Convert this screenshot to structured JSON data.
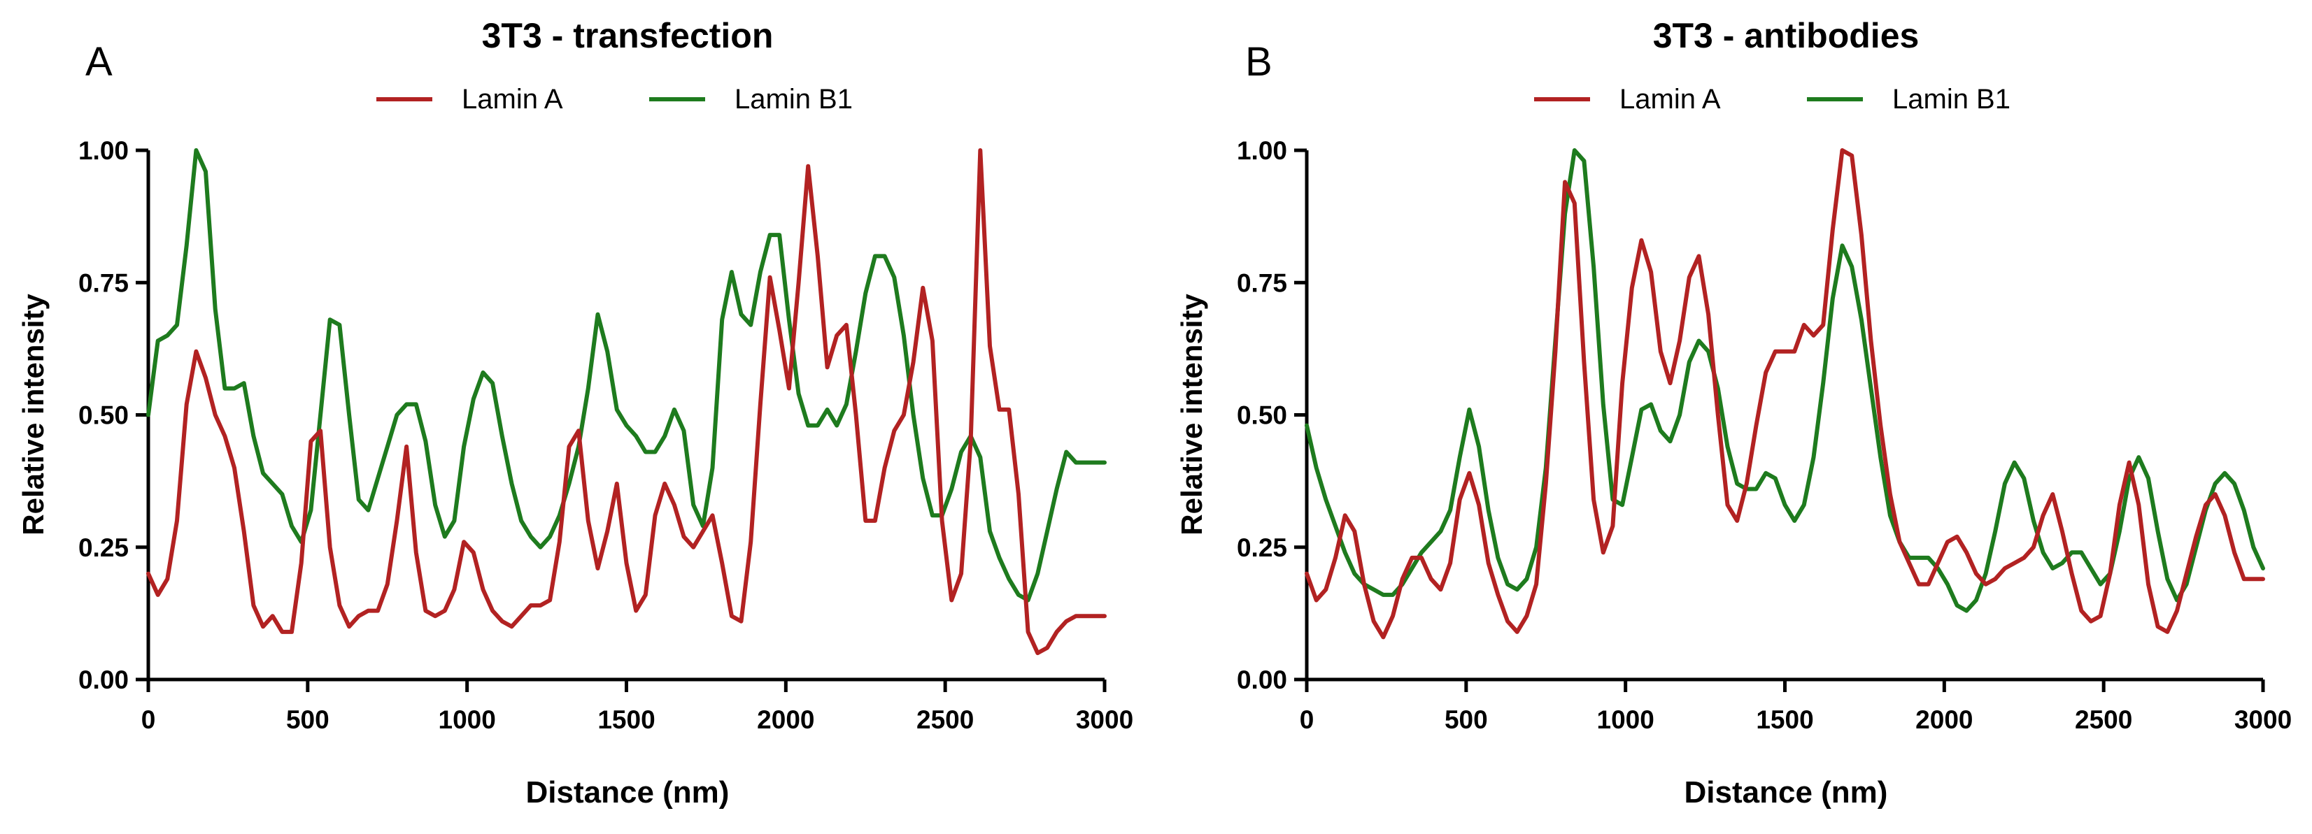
{
  "chart_data": [
    {
      "panel_letter": "A",
      "type": "line",
      "title": "3T3 - transfection",
      "xlabel": "Distance (nm)",
      "ylabel": "Relative intensity",
      "xlim": [
        0,
        3000
      ],
      "ylim": [
        0,
        1
      ],
      "xticks": [
        0,
        500,
        1000,
        1500,
        2000,
        2500,
        3000
      ],
      "yticks": [
        0,
        0.25,
        0.5,
        0.75,
        1.0
      ],
      "ytick_labels": [
        "0.00",
        "0.25",
        "0.50",
        "0.75",
        "1.00"
      ],
      "grid": false,
      "legend_position": "top",
      "series": [
        {
          "name": "Lamin A",
          "color": "#b22222",
          "x": [
            0,
            30,
            60,
            90,
            120,
            150,
            180,
            210,
            240,
            270,
            300,
            330,
            360,
            390,
            420,
            450,
            480,
            510,
            540,
            570,
            600,
            630,
            660,
            690,
            720,
            750,
            780,
            810,
            840,
            870,
            900,
            930,
            960,
            990,
            1020,
            1050,
            1080,
            1110,
            1140,
            1170,
            1200,
            1230,
            1260,
            1290,
            1320,
            1350,
            1380,
            1410,
            1440,
            1470,
            1500,
            1530,
            1560,
            1590,
            1620,
            1650,
            1680,
            1710,
            1740,
            1770,
            1800,
            1830,
            1860,
            1890,
            1920,
            1950,
            1980,
            2010,
            2040,
            2070,
            2100,
            2130,
            2160,
            2190,
            2220,
            2250,
            2280,
            2310,
            2340,
            2370,
            2400,
            2430,
            2460,
            2490,
            2520,
            2550,
            2580,
            2610,
            2640,
            2670,
            2700,
            2730,
            2760,
            2790,
            2820,
            2850,
            2880,
            2910,
            2940,
            2970,
            3000
          ],
          "values": [
            0.2,
            0.16,
            0.19,
            0.3,
            0.52,
            0.62,
            0.57,
            0.5,
            0.46,
            0.4,
            0.28,
            0.14,
            0.1,
            0.12,
            0.09,
            0.09,
            0.22,
            0.45,
            0.47,
            0.25,
            0.14,
            0.1,
            0.12,
            0.13,
            0.13,
            0.18,
            0.3,
            0.44,
            0.24,
            0.13,
            0.12,
            0.13,
            0.17,
            0.26,
            0.24,
            0.17,
            0.13,
            0.11,
            0.1,
            0.12,
            0.14,
            0.14,
            0.15,
            0.26,
            0.44,
            0.47,
            0.3,
            0.21,
            0.28,
            0.37,
            0.22,
            0.13,
            0.16,
            0.31,
            0.37,
            0.33,
            0.27,
            0.25,
            0.28,
            0.31,
            0.22,
            0.12,
            0.11,
            0.26,
            0.52,
            0.76,
            0.66,
            0.55,
            0.75,
            0.97,
            0.8,
            0.59,
            0.65,
            0.67,
            0.5,
            0.3,
            0.3,
            0.4,
            0.47,
            0.5,
            0.6,
            0.74,
            0.64,
            0.3,
            0.15,
            0.2,
            0.45,
            1.0,
            0.63,
            0.51,
            0.51,
            0.35,
            0.09,
            0.05,
            0.06,
            0.09,
            0.11,
            0.12,
            0.12,
            0.12,
            0.12
          ]
        },
        {
          "name": "Lamin B1",
          "color": "#1e7b1e",
          "x": [
            0,
            30,
            60,
            90,
            120,
            150,
            180,
            210,
            240,
            270,
            300,
            330,
            360,
            390,
            420,
            450,
            480,
            510,
            540,
            570,
            600,
            630,
            660,
            690,
            720,
            750,
            780,
            810,
            840,
            870,
            900,
            930,
            960,
            990,
            1020,
            1050,
            1080,
            1110,
            1140,
            1170,
            1200,
            1230,
            1260,
            1290,
            1320,
            1350,
            1380,
            1410,
            1440,
            1470,
            1500,
            1530,
            1560,
            1590,
            1620,
            1650,
            1680,
            1710,
            1740,
            1770,
            1800,
            1830,
            1860,
            1890,
            1920,
            1950,
            1980,
            2010,
            2040,
            2070,
            2100,
            2130,
            2160,
            2190,
            2220,
            2250,
            2280,
            2310,
            2340,
            2370,
            2400,
            2430,
            2460,
            2490,
            2520,
            2550,
            2580,
            2610,
            2640,
            2670,
            2700,
            2730,
            2760,
            2790,
            2820,
            2850,
            2880,
            2910,
            2940,
            2970,
            3000
          ],
          "values": [
            0.5,
            0.64,
            0.65,
            0.67,
            0.82,
            1.0,
            0.96,
            0.7,
            0.55,
            0.55,
            0.56,
            0.46,
            0.39,
            0.37,
            0.35,
            0.29,
            0.26,
            0.32,
            0.5,
            0.68,
            0.67,
            0.5,
            0.34,
            0.32,
            0.38,
            0.44,
            0.5,
            0.52,
            0.52,
            0.45,
            0.33,
            0.27,
            0.3,
            0.44,
            0.53,
            0.58,
            0.56,
            0.46,
            0.37,
            0.3,
            0.27,
            0.25,
            0.27,
            0.31,
            0.37,
            0.44,
            0.55,
            0.69,
            0.62,
            0.51,
            0.48,
            0.46,
            0.43,
            0.43,
            0.46,
            0.51,
            0.47,
            0.33,
            0.29,
            0.4,
            0.68,
            0.77,
            0.69,
            0.67,
            0.77,
            0.84,
            0.84,
            0.68,
            0.54,
            0.48,
            0.48,
            0.51,
            0.48,
            0.52,
            0.62,
            0.73,
            0.8,
            0.8,
            0.76,
            0.65,
            0.5,
            0.38,
            0.31,
            0.31,
            0.36,
            0.43,
            0.46,
            0.42,
            0.28,
            0.23,
            0.19,
            0.16,
            0.15,
            0.2,
            0.28,
            0.36,
            0.43,
            0.41,
            0.41,
            0.41,
            0.41
          ]
        }
      ]
    },
    {
      "panel_letter": "B",
      "type": "line",
      "title": "3T3 -  antibodies",
      "xlabel": "Distance (nm)",
      "ylabel": "Relative intensity",
      "xlim": [
        0,
        3000
      ],
      "ylim": [
        0,
        1
      ],
      "xticks": [
        0,
        500,
        1000,
        1500,
        2000,
        2500,
        3000
      ],
      "yticks": [
        0,
        0.25,
        0.5,
        0.75,
        1.0
      ],
      "ytick_labels": [
        "0.00",
        "0.25",
        "0.50",
        "0.75",
        "1.00"
      ],
      "grid": false,
      "legend_position": "top",
      "series": [
        {
          "name": "Lamin A",
          "color": "#b22222",
          "x": [
            0,
            30,
            60,
            90,
            120,
            150,
            180,
            210,
            240,
            270,
            300,
            330,
            360,
            390,
            420,
            450,
            480,
            510,
            540,
            570,
            600,
            630,
            660,
            690,
            720,
            750,
            780,
            810,
            840,
            870,
            900,
            930,
            960,
            990,
            1020,
            1050,
            1080,
            1110,
            1140,
            1170,
            1200,
            1230,
            1260,
            1290,
            1320,
            1350,
            1380,
            1410,
            1440,
            1470,
            1500,
            1530,
            1560,
            1590,
            1620,
            1650,
            1680,
            1710,
            1740,
            1770,
            1800,
            1830,
            1860,
            1890,
            1920,
            1950,
            1980,
            2010,
            2040,
            2070,
            2100,
            2130,
            2160,
            2190,
            2220,
            2250,
            2280,
            2310,
            2340,
            2370,
            2400,
            2430,
            2460,
            2490,
            2520,
            2550,
            2580,
            2610,
            2640,
            2670,
            2700,
            2730,
            2760,
            2790,
            2820,
            2850,
            2880,
            2910,
            2940,
            2970,
            3000
          ],
          "values": [
            0.2,
            0.15,
            0.17,
            0.23,
            0.31,
            0.28,
            0.18,
            0.11,
            0.08,
            0.12,
            0.19,
            0.23,
            0.23,
            0.19,
            0.17,
            0.22,
            0.34,
            0.39,
            0.33,
            0.22,
            0.16,
            0.11,
            0.09,
            0.12,
            0.18,
            0.37,
            0.62,
            0.94,
            0.9,
            0.6,
            0.34,
            0.24,
            0.29,
            0.56,
            0.74,
            0.83,
            0.77,
            0.62,
            0.56,
            0.64,
            0.76,
            0.8,
            0.69,
            0.5,
            0.33,
            0.3,
            0.37,
            0.48,
            0.58,
            0.62,
            0.62,
            0.62,
            0.67,
            0.65,
            0.67,
            0.85,
            1.0,
            0.99,
            0.84,
            0.64,
            0.48,
            0.35,
            0.26,
            0.22,
            0.18,
            0.18,
            0.22,
            0.26,
            0.27,
            0.24,
            0.2,
            0.18,
            0.19,
            0.21,
            0.22,
            0.23,
            0.25,
            0.31,
            0.35,
            0.28,
            0.2,
            0.13,
            0.11,
            0.12,
            0.2,
            0.33,
            0.41,
            0.33,
            0.18,
            0.1,
            0.09,
            0.13,
            0.2,
            0.27,
            0.33,
            0.35,
            0.31,
            0.24,
            0.19,
            0.19,
            0.19
          ]
        },
        {
          "name": "Lamin B1",
          "color": "#1e7b1e",
          "x": [
            0,
            30,
            60,
            90,
            120,
            150,
            180,
            210,
            240,
            270,
            300,
            330,
            360,
            390,
            420,
            450,
            480,
            510,
            540,
            570,
            600,
            630,
            660,
            690,
            720,
            750,
            780,
            810,
            840,
            870,
            900,
            930,
            960,
            990,
            1020,
            1050,
            1080,
            1110,
            1140,
            1170,
            1200,
            1230,
            1260,
            1290,
            1320,
            1350,
            1380,
            1410,
            1440,
            1470,
            1500,
            1530,
            1560,
            1590,
            1620,
            1650,
            1680,
            1710,
            1740,
            1770,
            1800,
            1830,
            1860,
            1890,
            1920,
            1950,
            1980,
            2010,
            2040,
            2070,
            2100,
            2130,
            2160,
            2190,
            2220,
            2250,
            2280,
            2310,
            2340,
            2370,
            2400,
            2430,
            2460,
            2490,
            2520,
            2550,
            2580,
            2610,
            2640,
            2670,
            2700,
            2730,
            2760,
            2790,
            2820,
            2850,
            2880,
            2910,
            2940,
            2970,
            3000
          ],
          "values": [
            0.48,
            0.4,
            0.34,
            0.29,
            0.24,
            0.2,
            0.18,
            0.17,
            0.16,
            0.16,
            0.18,
            0.21,
            0.24,
            0.26,
            0.28,
            0.32,
            0.42,
            0.51,
            0.44,
            0.32,
            0.23,
            0.18,
            0.17,
            0.19,
            0.25,
            0.4,
            0.64,
            0.88,
            1.0,
            0.98,
            0.78,
            0.52,
            0.34,
            0.33,
            0.42,
            0.51,
            0.52,
            0.47,
            0.45,
            0.5,
            0.6,
            0.64,
            0.62,
            0.55,
            0.44,
            0.37,
            0.36,
            0.36,
            0.39,
            0.38,
            0.33,
            0.3,
            0.33,
            0.42,
            0.56,
            0.72,
            0.82,
            0.78,
            0.68,
            0.55,
            0.42,
            0.31,
            0.26,
            0.23,
            0.23,
            0.23,
            0.21,
            0.18,
            0.14,
            0.13,
            0.15,
            0.2,
            0.28,
            0.37,
            0.41,
            0.38,
            0.3,
            0.24,
            0.21,
            0.22,
            0.24,
            0.24,
            0.21,
            0.18,
            0.2,
            0.28,
            0.38,
            0.42,
            0.38,
            0.28,
            0.19,
            0.15,
            0.18,
            0.25,
            0.32,
            0.37,
            0.39,
            0.37,
            0.32,
            0.25,
            0.21
          ]
        }
      ]
    }
  ]
}
